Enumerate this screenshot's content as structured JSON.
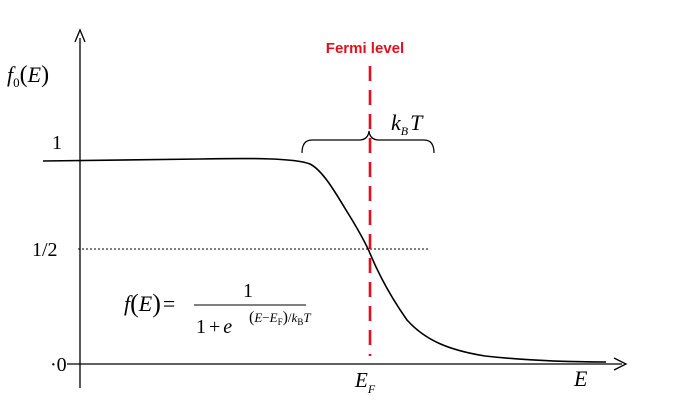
{
  "y_axis_label": {
    "f": "f",
    "sub": "0",
    "open": "(",
    "var": "E",
    "close": ")"
  },
  "y_ticks": {
    "one": "1",
    "half": "1/2",
    "zero": "·0"
  },
  "x_axis_label": "E",
  "fermi": {
    "title": "Fermi level",
    "label_main": "E",
    "label_sub": "F",
    "color": "#e0101e"
  },
  "width_label": {
    "k": "k",
    "sub": "B",
    "T": "T"
  },
  "formula": {
    "lhs_f": "f",
    "lhs_open": "(",
    "lhs_var": "E",
    "lhs_close": ")",
    "equals": "=",
    "numerator": "1",
    "denom_one": "1",
    "denom_plus": "+",
    "denom_e": "e",
    "exp_open": "(",
    "exp_E": "E",
    "exp_minus": "−",
    "exp_EF": "E",
    "exp_EF_sub": "F",
    "exp_close": ")",
    "exp_slash": "/",
    "exp_k": "k",
    "exp_kB_sub": "B",
    "exp_T": "T"
  },
  "colors": {
    "axis": "#000000",
    "curve": "#000000",
    "fermi_line": "#e0101e"
  }
}
